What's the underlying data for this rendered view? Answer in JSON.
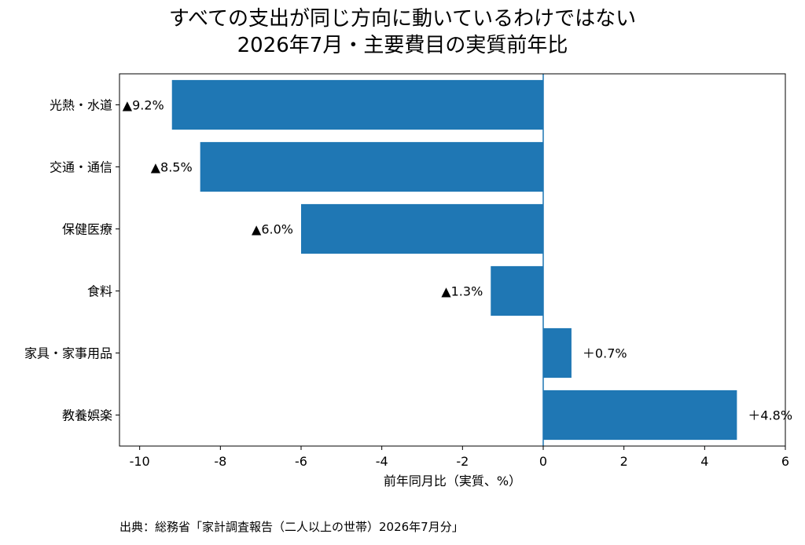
{
  "chart_data": {
    "type": "bar",
    "orientation": "horizontal",
    "title_line1": "すべての支出が同じ方向に動いているわけではない",
    "title_line2": "2026年7月・主要費目の実質前年比",
    "categories": [
      "光熱・水道",
      "交通・通信",
      "保健医療",
      "食料",
      "家具・家事用品",
      "教養娯楽"
    ],
    "values": [
      -9.2,
      -8.5,
      -6.0,
      -1.3,
      0.7,
      4.8
    ],
    "data_labels": [
      "▲9.2%",
      "▲8.5%",
      "▲6.0%",
      "▲1.3%",
      "＋0.7%",
      "＋4.8%"
    ],
    "xlabel": "前年同月比（実質、%）",
    "xlim": [
      -10.5,
      6
    ],
    "xticks": [
      -10,
      -8,
      -6,
      -4,
      -2,
      0,
      2,
      4,
      6
    ],
    "bar_color": "#1f77b4",
    "zero_line_color": "#1f77b4",
    "grid": false
  },
  "source": "出典：総務省「家計調査報告（二人以上の世帯）2026年7月分」"
}
